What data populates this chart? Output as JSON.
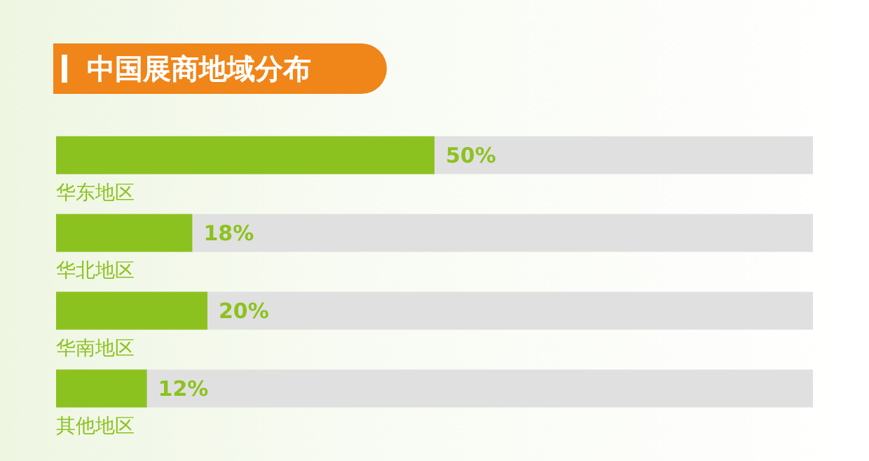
{
  "chart_data": {
    "type": "bar",
    "orientation": "horizontal",
    "title": "中国展商地域分布",
    "categories": [
      "华东地区",
      "华北地区",
      "华南地区",
      "其他地区"
    ],
    "values": [
      50,
      18,
      20,
      12
    ],
    "value_labels": [
      "50%",
      "18%",
      "20%",
      "12%"
    ],
    "color": "#8cc21f",
    "xlim": [
      0,
      100
    ],
    "tick_labels": "y"
  }
}
